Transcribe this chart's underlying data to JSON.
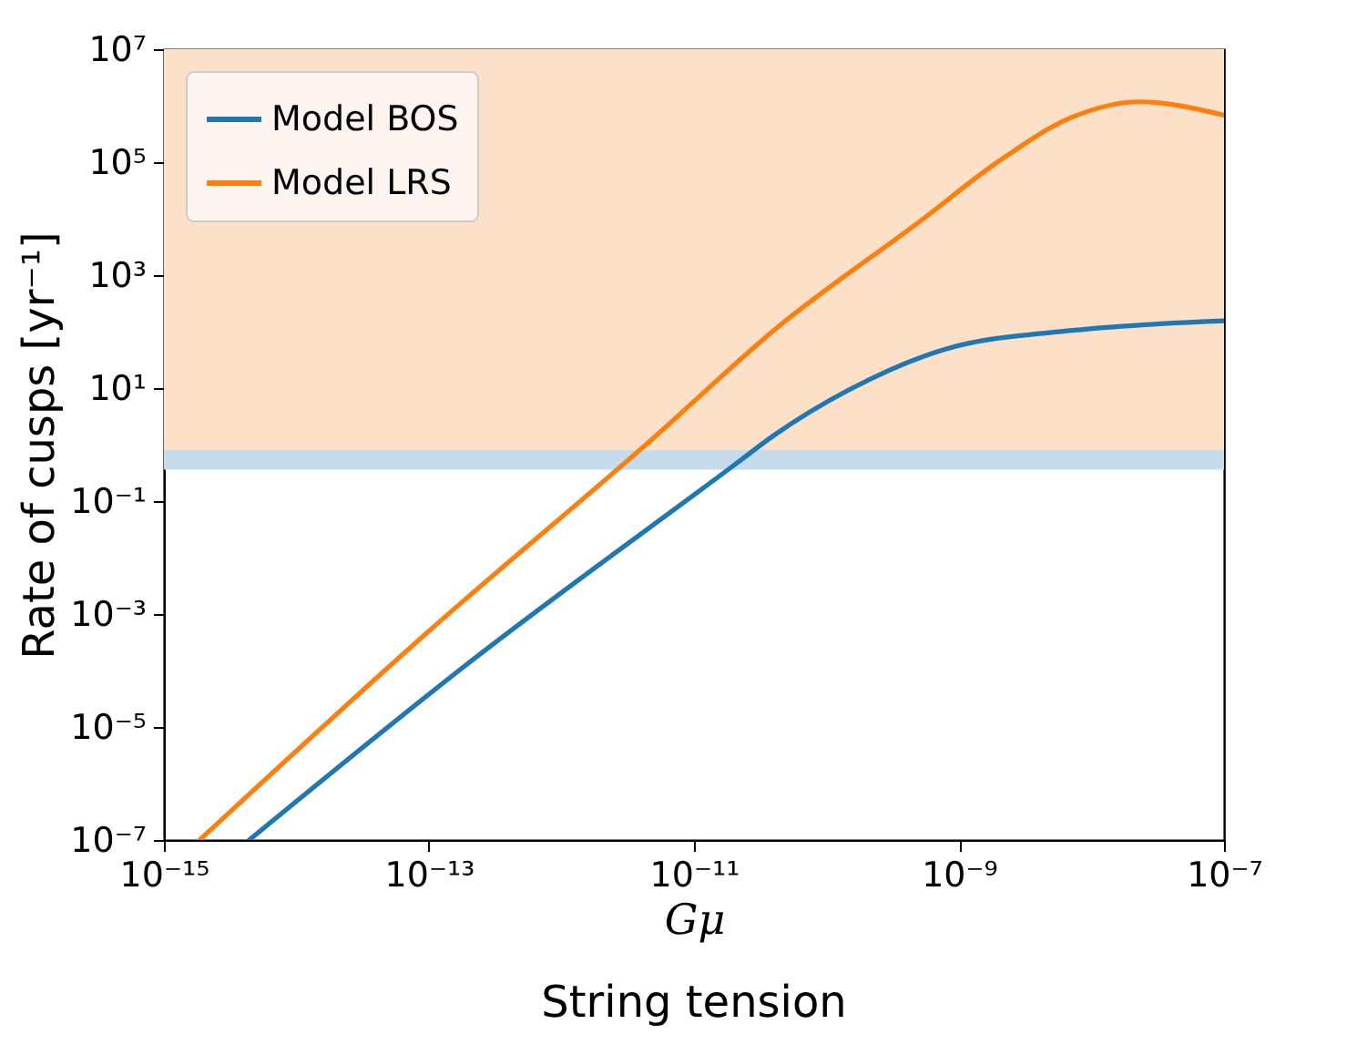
{
  "chart_data": {
    "type": "line",
    "xlabel": "Gμ",
    "ylabel": "Rate of cusps [yr⁻¹]",
    "annotations": [
      "String tension"
    ],
    "log": "xy",
    "grid": false,
    "legend": "top left",
    "line_style": "solid",
    "marker": "none",
    "xlim": [
      1e-15,
      1e-07
    ],
    "ylim": [
      1e-07,
      10000000.0
    ],
    "xticks": [
      {
        "value": 1e-15,
        "label": "10⁻¹⁵"
      },
      {
        "value": 1e-13,
        "label": "10⁻¹³"
      },
      {
        "value": 1e-11,
        "label": "10⁻¹¹"
      },
      {
        "value": 1e-09,
        "label": "10⁻⁹"
      },
      {
        "value": 1e-07,
        "label": "10⁻⁷"
      }
    ],
    "yticks": [
      {
        "value": 1e-07,
        "label": "10⁻⁷"
      },
      {
        "value": 1e-05,
        "label": "10⁻⁵"
      },
      {
        "value": 0.001,
        "label": "10⁻³"
      },
      {
        "value": 0.1,
        "label": "10⁻¹"
      },
      {
        "value": 10,
        "label": "10¹"
      },
      {
        "value": 1000,
        "label": "10³"
      },
      {
        "value": 100000,
        "label": "10⁵"
      },
      {
        "value": 10000000,
        "label": "10⁷"
      }
    ],
    "bands": [
      {
        "axis": "y",
        "from": 0.8,
        "to": 10000000,
        "label": null,
        "color": "#fde0c8"
      },
      {
        "axis": "y",
        "from": 0.36,
        "to": 0.8,
        "label": null,
        "color": "#c6dbec"
      }
    ],
    "series": [
      {
        "name": "Model BOS",
        "color": "#1f77b4",
        "x": [
          4.4e-15,
          2.1e-13,
          2e-11,
          4e-11,
          1.45e-10,
          7.9e-10,
          7.2e-09,
          1e-07
        ],
        "values": [
          1e-07,
          0.00015,
          0.43,
          1.45,
          9.1,
          49,
          105,
          155
        ]
      },
      {
        "name": "Model LRS",
        "color": "#ff7f0e",
        "x": [
          1.86e-15,
          9.8e-14,
          5.2e-12,
          4e-11,
          5.4e-10,
          1.95e-09,
          7.2e-09,
          2.3e-08,
          1e-07
        ],
        "values": [
          1e-07,
          0.00048,
          1.45,
          105,
          10000,
          100000,
          630000,
          1170000,
          680000
        ]
      }
    ]
  }
}
